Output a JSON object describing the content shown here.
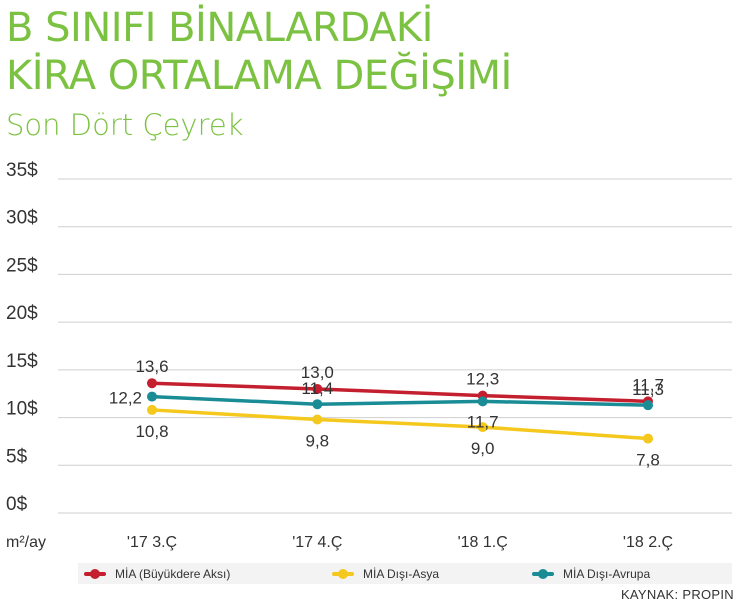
{
  "header": {
    "title_line1": "B SINIFI BİNALARDAKİ",
    "title_line2": "KİRA ORTALAMA DEĞİŞİMİ",
    "subtitle": "Son Dört Çeyrek"
  },
  "colors": {
    "accent": "#7cc242",
    "series1": "#c41f2e",
    "series2": "#f4c81c",
    "series3": "#1a8c96",
    "grid": "#cfcfcf"
  },
  "chart_data": {
    "type": "line",
    "title": "B SINIFI BİNALARDAKİ KİRA ORTALAMA DEĞİŞİMİ",
    "subtitle": "Son Dört Çeyrek",
    "ylabel": "m²/ay",
    "xlabel": "",
    "categories": [
      "'17 3.Ç",
      "'17 4.Ç",
      "'18 1.Ç",
      "'18 2.Ç"
    ],
    "ylim": [
      0,
      35
    ],
    "yticks": [
      0,
      5,
      10,
      15,
      20,
      25,
      30,
      35
    ],
    "ytick_labels": [
      "0$",
      "5$",
      "10$",
      "15$",
      "20$",
      "25$",
      "30$",
      "35$"
    ],
    "grid": true,
    "legend_position": "bottom",
    "series": [
      {
        "name": "MİA (Büyükdere Aksı)",
        "values": [
          13.6,
          13.0,
          12.3,
          11.7
        ],
        "labels": [
          "13,6",
          "13,0",
          "12,3",
          "11,7"
        ],
        "label_position": "above"
      },
      {
        "name": "MİA Dışı-Asya",
        "values": [
          10.8,
          9.8,
          9.0,
          7.8
        ],
        "labels": [
          "10,8",
          "9,8",
          "9,0",
          "7,8"
        ],
        "label_position": "below"
      },
      {
        "name": "MİA Dışı-Avrupa",
        "values": [
          12.2,
          11.4,
          11.7,
          11.3
        ],
        "labels": [
          "12,2",
          "11,4",
          "11,7",
          "11,3"
        ],
        "label_position": "mixed"
      }
    ]
  },
  "source": "KAYNAK: PROPIN"
}
